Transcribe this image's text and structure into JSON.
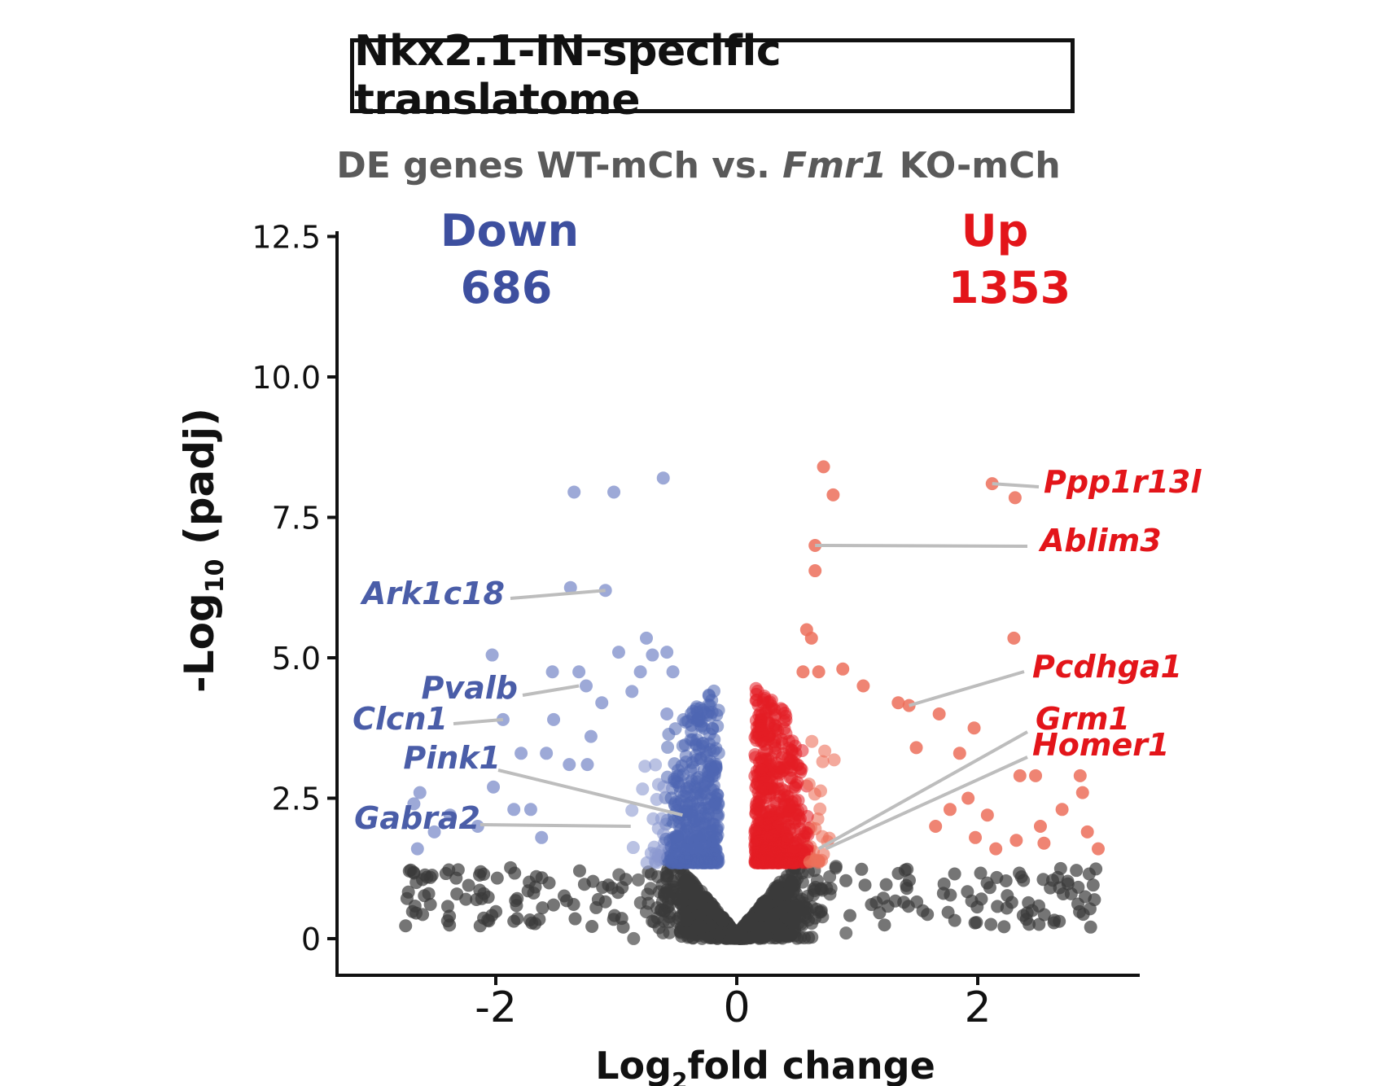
{
  "chart_data": {
    "type": "scatter",
    "title": "Nkx2.1-IN-specific translatome",
    "subtitle": {
      "prefix": "DE genes WT-mCh  vs. ",
      "gene_italic": "Fmr1",
      "suffix": " KO-mCh"
    },
    "xlabel": {
      "base": "Log",
      "sub": "2",
      "rest": "fold change"
    },
    "ylabel": {
      "base": "-Log",
      "sub": "10",
      "rest": " (padj)"
    },
    "xlim": [
      -3.0,
      3.2
    ],
    "ylim": [
      -0.6,
      12.5
    ],
    "xticks": [
      -2,
      0,
      2
    ],
    "xtick_labels": [
      "-2",
      "0",
      "2"
    ],
    "yticks": [
      0,
      2.5,
      5.0,
      7.5,
      10.0,
      12.5
    ],
    "ytick_labels": [
      "0",
      "2.5",
      "5.0",
      "7.5",
      "10.0",
      "12.5"
    ],
    "grid": false,
    "significance_threshold": 1.3,
    "colors": {
      "down": "#4e66b3",
      "down_light": "#8c9ad0",
      "up": "#e31d24",
      "up_light": "#ec6f5a",
      "ns": "#3b3b3b",
      "label_line": "#bdbdbd"
    },
    "summary": {
      "down": {
        "label": "Down",
        "count": "686",
        "color": "#3d4f9f"
      },
      "up": {
        "label": "Up",
        "count": "1353",
        "color": "#e3151a"
      }
    },
    "series": [
      {
        "name": "Down",
        "points": [
          [
            -0.61,
            8.2
          ],
          [
            -1.35,
            7.95
          ],
          [
            -1.02,
            7.95
          ],
          [
            -1.38,
            6.25
          ],
          [
            -1.09,
            6.2
          ],
          [
            -2.03,
            5.05
          ],
          [
            -0.75,
            5.35
          ],
          [
            -0.98,
            5.1
          ],
          [
            -0.7,
            5.05
          ],
          [
            -0.58,
            5.1
          ],
          [
            -1.53,
            4.75
          ],
          [
            -1.31,
            4.75
          ],
          [
            -1.25,
            4.5
          ],
          [
            -0.8,
            4.75
          ],
          [
            -0.53,
            4.75
          ],
          [
            -1.12,
            4.2
          ],
          [
            -0.87,
            4.4
          ],
          [
            -0.58,
            4.0
          ],
          [
            -1.94,
            3.9
          ],
          [
            -1.52,
            3.9
          ],
          [
            -1.79,
            3.3
          ],
          [
            -1.58,
            3.3
          ],
          [
            -1.39,
            3.1
          ],
          [
            -1.24,
            3.1
          ],
          [
            -1.21,
            3.6
          ],
          [
            -2.63,
            2.6
          ],
          [
            -2.68,
            2.4
          ],
          [
            -2.38,
            2.2
          ],
          [
            -2.51,
            1.9
          ],
          [
            -2.65,
            1.6
          ],
          [
            -2.02,
            2.7
          ],
          [
            -1.71,
            2.3
          ],
          [
            -2.15,
            2.0
          ],
          [
            -1.85,
            2.3
          ],
          [
            -1.62,
            1.8
          ]
        ]
      },
      {
        "name": "Up",
        "points": [
          [
            0.72,
            8.4
          ],
          [
            0.8,
            7.9
          ],
          [
            2.12,
            8.1
          ],
          [
            2.31,
            7.85
          ],
          [
            0.65,
            7.0
          ],
          [
            0.65,
            6.55
          ],
          [
            0.58,
            5.5
          ],
          [
            0.62,
            5.35
          ],
          [
            2.3,
            5.35
          ],
          [
            0.55,
            4.75
          ],
          [
            0.68,
            4.75
          ],
          [
            0.88,
            4.8
          ],
          [
            1.05,
            4.5
          ],
          [
            1.34,
            4.2
          ],
          [
            1.43,
            4.15
          ],
          [
            1.49,
            3.4
          ],
          [
            1.85,
            3.3
          ],
          [
            1.68,
            4.0
          ],
          [
            1.97,
            3.75
          ],
          [
            2.35,
            2.9
          ],
          [
            2.48,
            2.9
          ],
          [
            2.85,
            2.9
          ],
          [
            2.87,
            2.6
          ],
          [
            2.7,
            2.3
          ],
          [
            2.91,
            1.9
          ],
          [
            3.0,
            1.6
          ],
          [
            2.52,
            2.0
          ],
          [
            2.55,
            1.7
          ],
          [
            2.15,
            1.6
          ],
          [
            2.32,
            1.75
          ],
          [
            1.92,
            2.5
          ],
          [
            1.77,
            2.3
          ],
          [
            1.65,
            2.0
          ],
          [
            2.08,
            2.2
          ],
          [
            1.98,
            1.8
          ]
        ]
      }
    ],
    "labeled_genes": [
      {
        "gene": "Ppp1r13l",
        "group": "up",
        "point": [
          2.12,
          8.1
        ]
      },
      {
        "gene": "Ablim3",
        "group": "up",
        "point": [
          0.65,
          7.0
        ]
      },
      {
        "gene": "Pcdhga1",
        "group": "up",
        "point": [
          1.43,
          4.15
        ]
      },
      {
        "gene": "Grm1",
        "group": "up",
        "point": [
          0.68,
          1.6
        ]
      },
      {
        "gene": "Homer1",
        "group": "up",
        "point": [
          0.74,
          1.6
        ]
      },
      {
        "gene": "Ark1c18",
        "group": "down",
        "point": [
          -1.09,
          6.2
        ]
      },
      {
        "gene": "Pvalb",
        "group": "down",
        "point": [
          -1.31,
          4.5
        ]
      },
      {
        "gene": "Clcn1",
        "group": "down",
        "point": [
          -1.94,
          3.9
        ]
      },
      {
        "gene": "Pink1",
        "group": "down",
        "point": [
          -0.45,
          2.2
        ]
      },
      {
        "gene": "Gabra2",
        "group": "down",
        "point": [
          -0.88,
          2.0
        ]
      }
    ]
  }
}
